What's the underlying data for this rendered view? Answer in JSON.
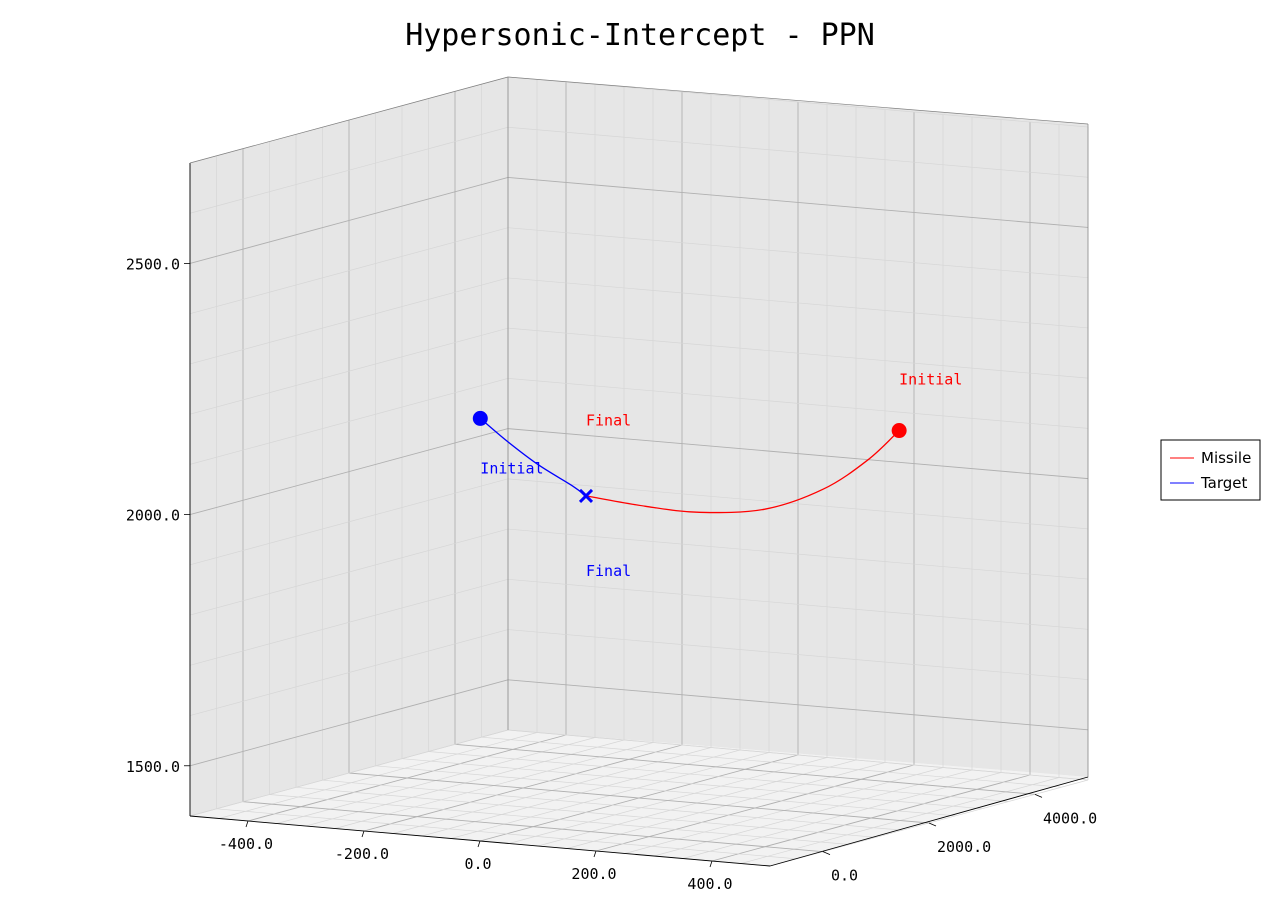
{
  "chart_data": {
    "type": "line",
    "projection": "3d",
    "title": "Hypersonic-Intercept - PPN",
    "xlabel": "",
    "ylabel": "",
    "zlabel": "",
    "x_ticks": [
      "-400.0",
      "-200.0",
      "0.0",
      "200.0",
      "400.0"
    ],
    "y_ticks": [
      "0.0",
      "2000.0",
      "4000.0"
    ],
    "z_ticks": [
      "1500.0",
      "2000.0",
      "2500.0"
    ],
    "xlim": [
      -500,
      500
    ],
    "ylim": [
      -1000,
      5000
    ],
    "zlim": [
      1400,
      2700
    ],
    "grid": true,
    "legend_position": "center-right",
    "series": [
      {
        "name": "Missile",
        "color": "#ff0000",
        "x": [
          380,
          340,
          290,
          225,
          150,
          80,
          0
        ],
        "y": [
          2750,
          2600,
          2300,
          1900,
          1500,
          1250,
          1000
        ],
        "z": [
          2148,
          2090,
          2035,
          2000,
          1998,
          2010,
          2030
        ]
      },
      {
        "name": "Target",
        "color": "#0000ff",
        "x": [
          -100,
          -70,
          -40,
          -5,
          0
        ],
        "y": [
          100,
          300,
          550,
          800,
          1000
        ],
        "z": [
          2200,
          2150,
          2100,
          2055,
          2030
        ]
      }
    ],
    "markers": [
      {
        "series": "Missile",
        "kind": "start",
        "shape": "circle",
        "x": 380,
        "y": 2750,
        "z": 2148
      },
      {
        "series": "Target",
        "kind": "start",
        "shape": "circle",
        "x": -100,
        "y": 100,
        "z": 2200
      },
      {
        "series": "Target",
        "kind": "intercept",
        "shape": "x",
        "x": 0,
        "y": 1000,
        "z": 2030
      }
    ],
    "annotations": [
      {
        "text": "Initial",
        "color": "#ff0000",
        "x": 380,
        "y": 2750,
        "z": 2240
      },
      {
        "text": "Final",
        "color": "#ff0000",
        "x": 0,
        "y": 1000,
        "z": 2170
      },
      {
        "text": "Initial",
        "color": "#0000ff",
        "x": -100,
        "y": 100,
        "z": 2090
      },
      {
        "text": "Final",
        "color": "#0000ff",
        "x": 0,
        "y": 1000,
        "z": 1870
      }
    ]
  }
}
